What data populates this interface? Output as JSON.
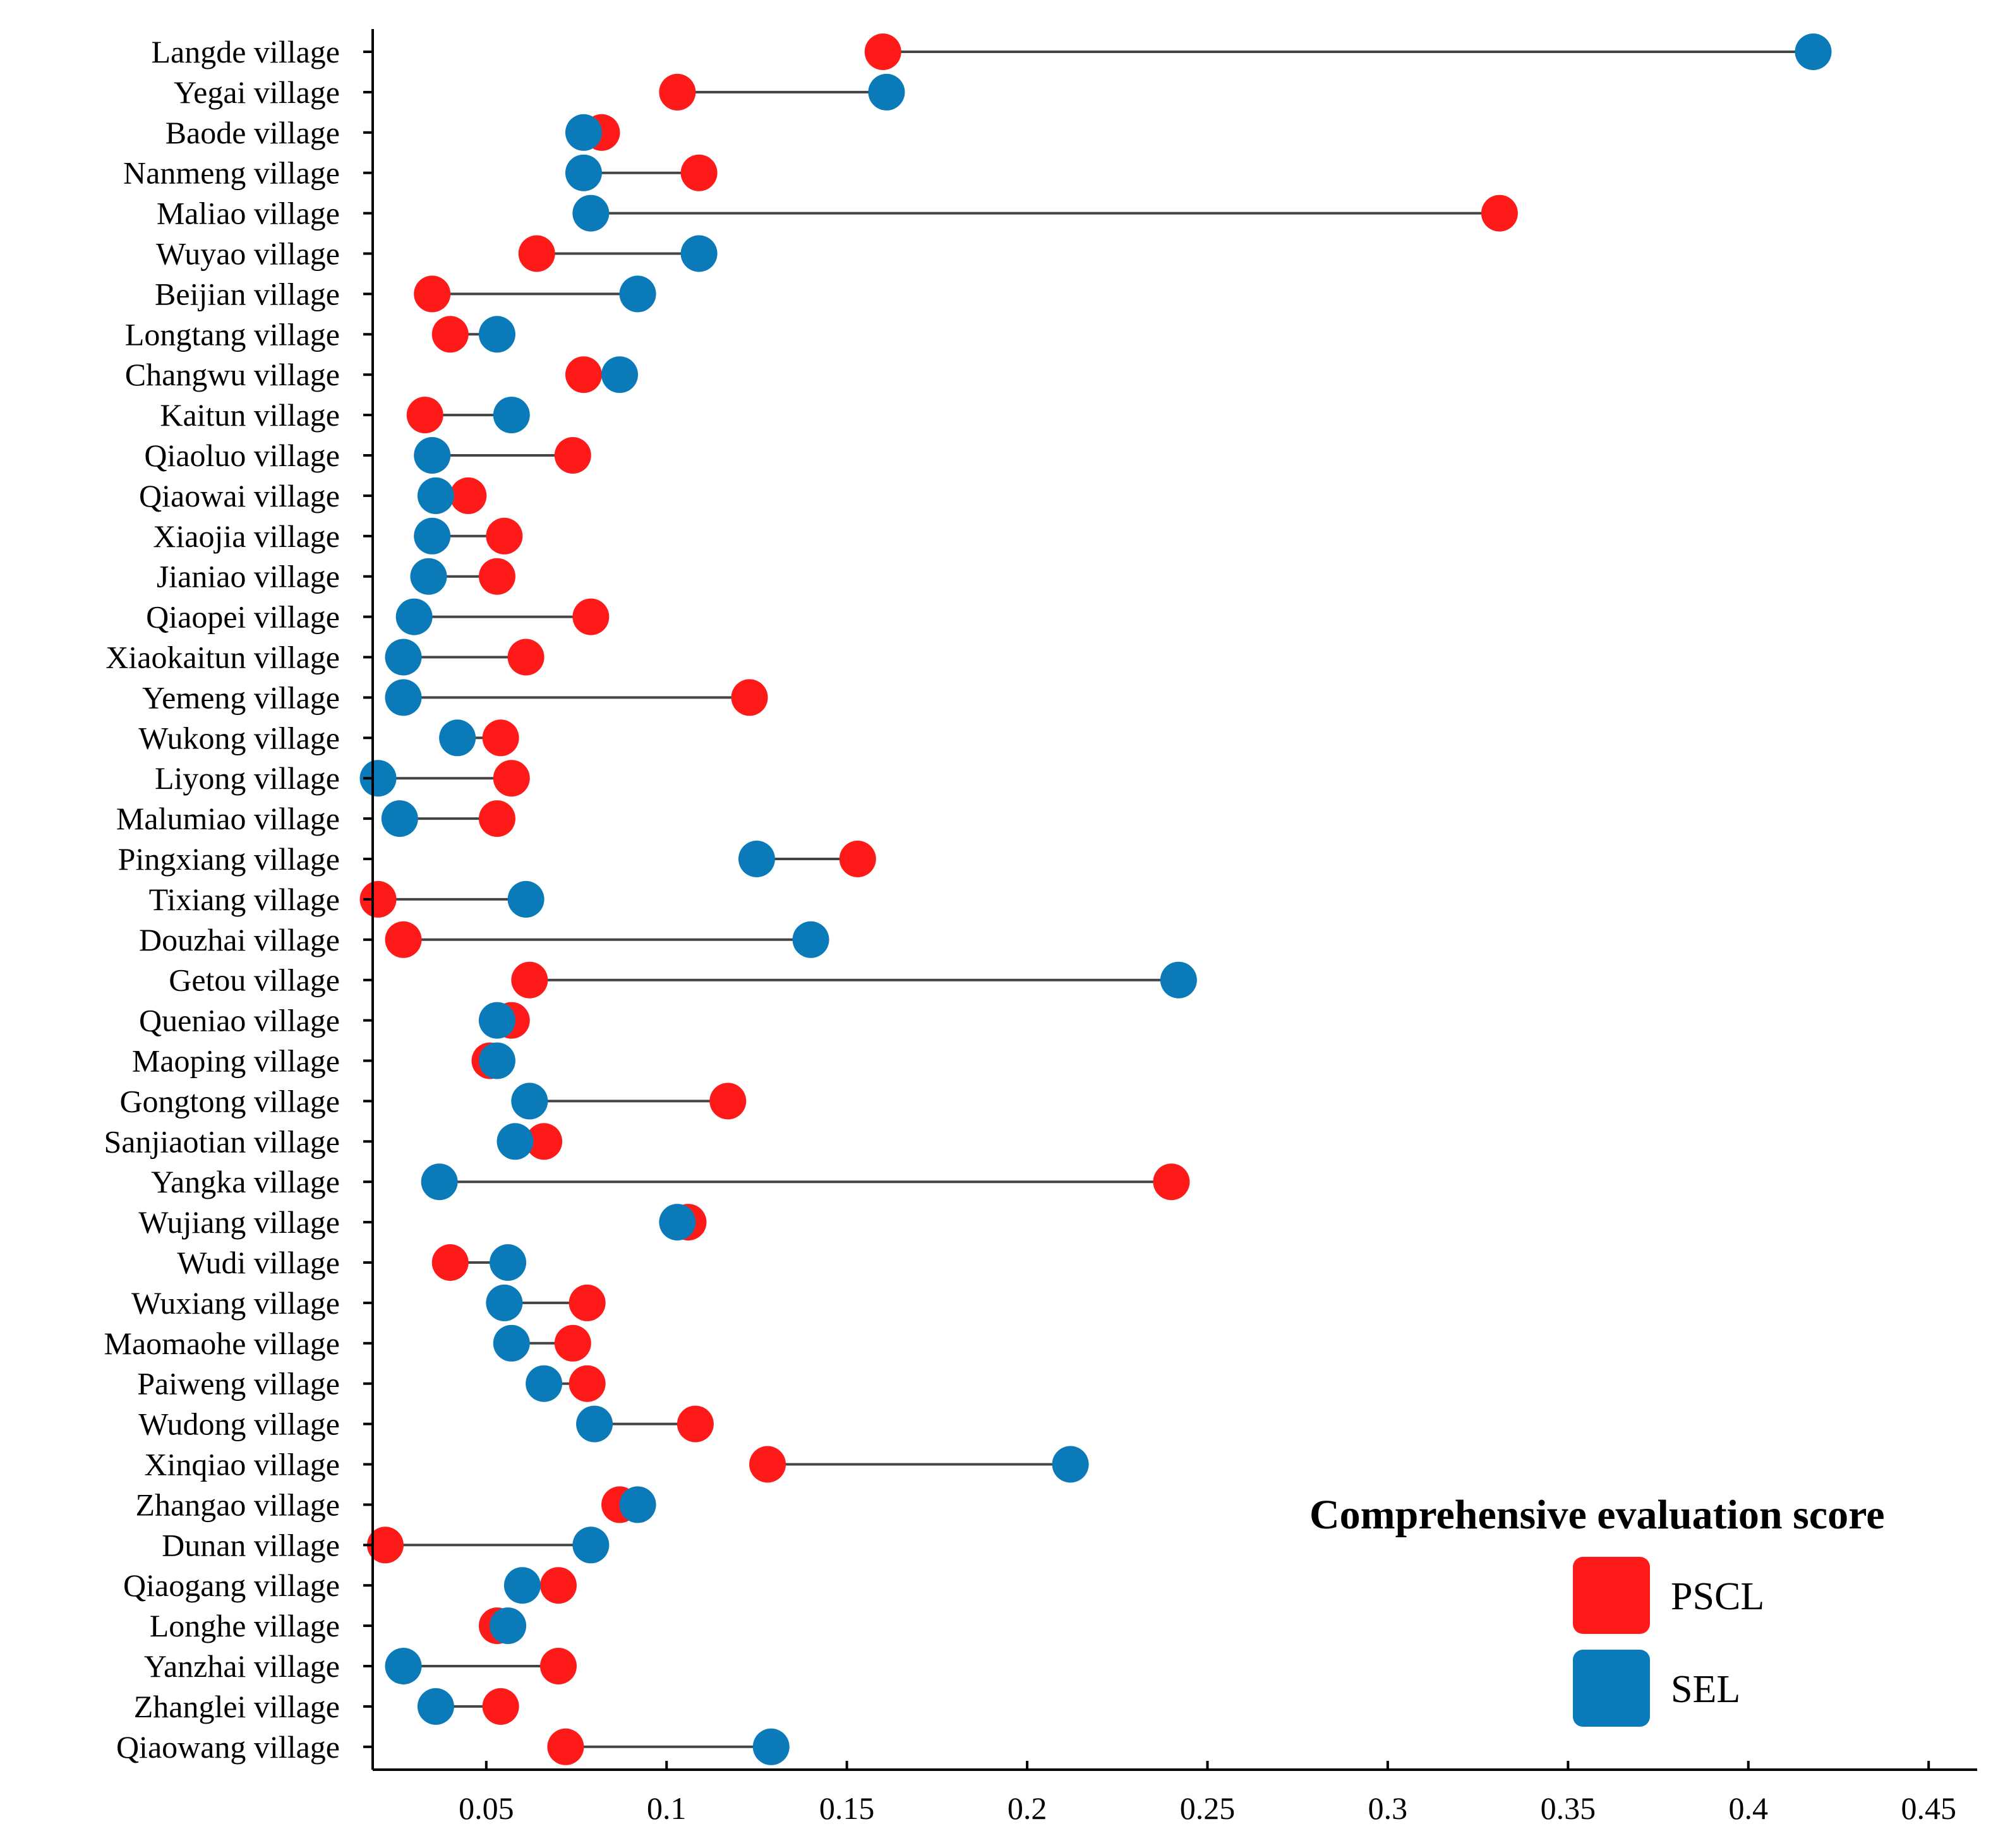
{
  "chart_data": {
    "type": "dumbbell",
    "orientation": "horizontal",
    "xlim": [
      0.0185,
      0.4582
    ],
    "xticks": [
      0.05,
      0.1,
      0.15,
      0.2,
      0.25,
      0.3,
      0.35,
      0.4,
      0.45
    ],
    "xtick_labels": [
      "0.05",
      "0.1",
      "0.15",
      "0.2",
      "0.25",
      "0.3",
      "0.35",
      "0.4",
      "0.45"
    ],
    "xlabel": "",
    "ylabel": "",
    "grid": false,
    "legend": {
      "title": "Comprehensive evaluation score",
      "placement": "bottom-right",
      "entries": [
        {
          "label": "PSCL",
          "color": "#FF1A1A"
        },
        {
          "label": "SEL",
          "color": "#0A7AB8"
        }
      ]
    },
    "line_color": "#444444",
    "categories": [
      "Langde village",
      "Yegai village",
      "Baode village",
      "Nanmeng village",
      "Maliao village",
      "Wuyao village",
      "Beijian village",
      "Longtang village",
      "Changwu village",
      "Kaitun village",
      "Qiaoluo village",
      "Qiaowai village",
      "Xiaojia village",
      "Jianiao village",
      "Qiaopei village",
      "Xiaokaitun village",
      "Yemeng village",
      "Wukong village",
      "Liyong village",
      "Malumiao village",
      "Pingxiang village",
      "Tixiang village",
      "Douzhai village",
      "Getou village",
      "Queniao village",
      "Maoping village",
      "Gongtong village",
      "Sanjiaotian village",
      "Yangka village",
      "Wujiang village",
      "Wudi village",
      "Wuxiang village",
      "Maomaohe village",
      "Paiweng village",
      "Wudong village",
      "Xinqiao village",
      "Zhangao village",
      "Dunan village",
      "Qiaogang village",
      "Longhe village",
      "Yanzhai village",
      "Zhanglei village",
      "Qiaowang village"
    ],
    "series": [
      {
        "name": "PSCL",
        "values": [
          0.16,
          0.103,
          0.082,
          0.109,
          0.331,
          0.064,
          0.035,
          0.04,
          0.077,
          0.033,
          0.074,
          0.045,
          0.055,
          0.053,
          0.079,
          0.061,
          0.123,
          0.054,
          0.057,
          0.053,
          0.153,
          0.02,
          0.027,
          0.062,
          0.057,
          0.051,
          0.117,
          0.066,
          0.24,
          0.106,
          0.04,
          0.078,
          0.074,
          0.078,
          0.108,
          0.128,
          0.087,
          0.022,
          0.07,
          0.053,
          0.07,
          0.054,
          0.072
        ]
      },
      {
        "name": "SEL",
        "values": [
          0.418,
          0.161,
          0.077,
          0.077,
          0.079,
          0.109,
          0.092,
          0.053,
          0.087,
          0.057,
          0.035,
          0.036,
          0.035,
          0.034,
          0.03,
          0.027,
          0.027,
          0.042,
          0.02,
          0.026,
          0.125,
          0.061,
          0.14,
          0.242,
          0.053,
          0.053,
          0.062,
          0.058,
          0.037,
          0.103,
          0.056,
          0.055,
          0.057,
          0.066,
          0.08,
          0.212,
          0.092,
          0.079,
          0.06,
          0.056,
          0.027,
          0.036,
          0.129
        ]
      }
    ]
  }
}
